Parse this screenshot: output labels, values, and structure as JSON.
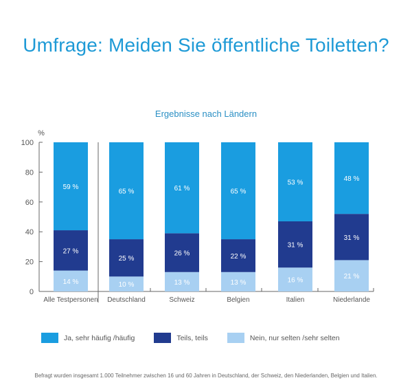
{
  "title": "Umfrage: Meiden Sie öffentliche Toiletten?",
  "subtitle": "Ergebnisse nach Ländern",
  "footnote": "Befragt wurden insgesamt 1.000 Teilnehmer zwischen 16 und 60 Jahren in Deutschland, der Schweiz, den Niederlanden, Belgien und Italien.",
  "colors": {
    "ja": "#1a9de0",
    "teils": "#213b8f",
    "nein": "#a8d0f2",
    "title": "#1e9ad6",
    "axis": "#666666"
  },
  "chart_data": {
    "type": "bar",
    "stacked": true,
    "title": "Umfrage: Meiden Sie öffentliche Toiletten?",
    "subtitle": "Ergebnisse nach Ländern",
    "xlabel": "",
    "ylabel": "%",
    "ylim": [
      0,
      100
    ],
    "yticks": [
      0,
      20,
      40,
      60,
      80,
      100
    ],
    "categories": [
      "Alle Testpersonen",
      "Deutschland",
      "Schweiz",
      "Belgien",
      "Italien",
      "Niederlande"
    ],
    "series": [
      {
        "name": "Nein, nur selten /sehr selten",
        "key": "nein",
        "values": [
          14,
          10,
          13,
          13,
          16,
          21
        ]
      },
      {
        "name": "Teils, teils",
        "key": "teils",
        "values": [
          27,
          25,
          26,
          22,
          31,
          31
        ]
      },
      {
        "name": "Ja, sehr häufig /häufig",
        "key": "ja",
        "values": [
          59,
          65,
          61,
          65,
          53,
          48
        ]
      }
    ],
    "value_suffix": " %",
    "legend": "bottom",
    "grid": false
  },
  "legend": [
    {
      "label": "Ja, sehr häufig /häufig",
      "key": "ja"
    },
    {
      "label": "Teils, teils",
      "key": "teils"
    },
    {
      "label": "Nein, nur selten /sehr selten",
      "key": "nein"
    }
  ]
}
